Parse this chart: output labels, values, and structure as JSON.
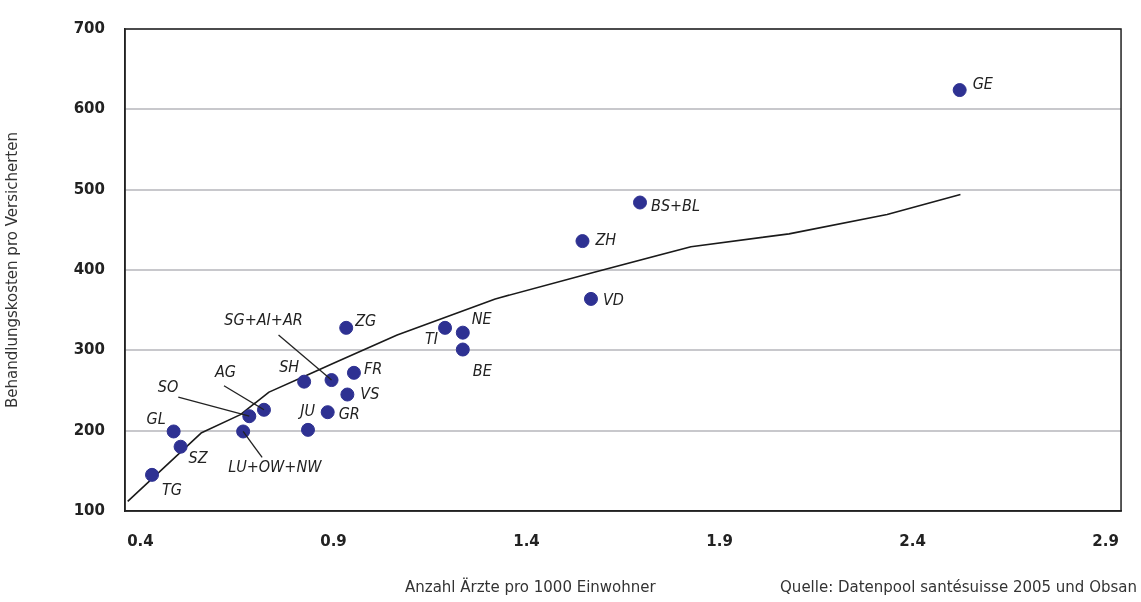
{
  "chart_data": {
    "type": "scatter",
    "xlabel": "Anzahl Ärzte pro 1000 Einwohner",
    "ylabel": "Behandlungskosten pro Versicherten",
    "xlim": [
      0.36,
      2.94
    ],
    "xticks": [
      0.4,
      0.9,
      1.4,
      1.9,
      2.4,
      2.9
    ],
    "ylim": [
      100,
      700
    ],
    "yticks": [
      100,
      200,
      300,
      400,
      500,
      600,
      700
    ],
    "grid": "y",
    "legend": false,
    "series": [
      {
        "marker": "circle",
        "color": "#2e3192",
        "x": [
          0.43,
          0.486,
          0.504,
          0.666,
          0.682,
          0.72,
          0.824,
          0.834,
          0.895,
          0.885,
          0.933,
          0.953,
          0.936,
          1.189,
          1.235,
          1.235,
          1.567,
          1.545,
          1.694,
          2.522
        ],
        "values": [
          145,
          199,
          180,
          199,
          218,
          226,
          261,
          201,
          263,
          223,
          328,
          272,
          245,
          328,
          322,
          301,
          364,
          436,
          484,
          624
        ]
      },
      {
        "type": "line",
        "marker": "none",
        "color": "#1a1a1a",
        "x": [
          0.367,
          0.557,
          0.659,
          0.733,
          0.831,
          0.9,
          1.065,
          1.319,
          1.573,
          1.826,
          2.08,
          2.334,
          2.524
        ],
        "values": [
          112,
          197,
          220,
          248,
          269,
          284,
          319,
          364,
          397,
          429,
          445,
          469,
          494
        ]
      }
    ],
    "annotations": [
      {
        "text": "TG",
        "x": 0.43,
        "y": 145
      },
      {
        "text": "GL",
        "x": 0.486,
        "y": 199
      },
      {
        "text": "SZ",
        "x": 0.504,
        "y": 180
      },
      {
        "text": "LU+OW+NW",
        "x": 0.666,
        "y": 199
      },
      {
        "text": "SO",
        "x": 0.682,
        "y": 218
      },
      {
        "text": "AG",
        "x": 0.72,
        "y": 226
      },
      {
        "text": "SH",
        "x": 0.824,
        "y": 261
      },
      {
        "text": "JU",
        "x": 0.834,
        "y": 201
      },
      {
        "text": "SG+AI+AR",
        "x": 0.895,
        "y": 263
      },
      {
        "text": "GR",
        "x": 0.885,
        "y": 223
      },
      {
        "text": "ZG",
        "x": 0.933,
        "y": 328
      },
      {
        "text": "FR",
        "x": 0.953,
        "y": 272
      },
      {
        "text": "VS",
        "x": 0.936,
        "y": 245
      },
      {
        "text": "TI",
        "x": 1.189,
        "y": 328
      },
      {
        "text": "NE",
        "x": 1.235,
        "y": 322
      },
      {
        "text": "BE",
        "x": 1.235,
        "y": 301
      },
      {
        "text": "VD",
        "x": 1.567,
        "y": 364
      },
      {
        "text": "ZH",
        "x": 1.545,
        "y": 436
      },
      {
        "text": "BS+BL",
        "x": 1.694,
        "y": 484
      },
      {
        "text": "GE",
        "x": 2.522,
        "y": 624
      },
      "Quelle: Datenpool santésuisse 2005 und Obsan"
    ]
  }
}
